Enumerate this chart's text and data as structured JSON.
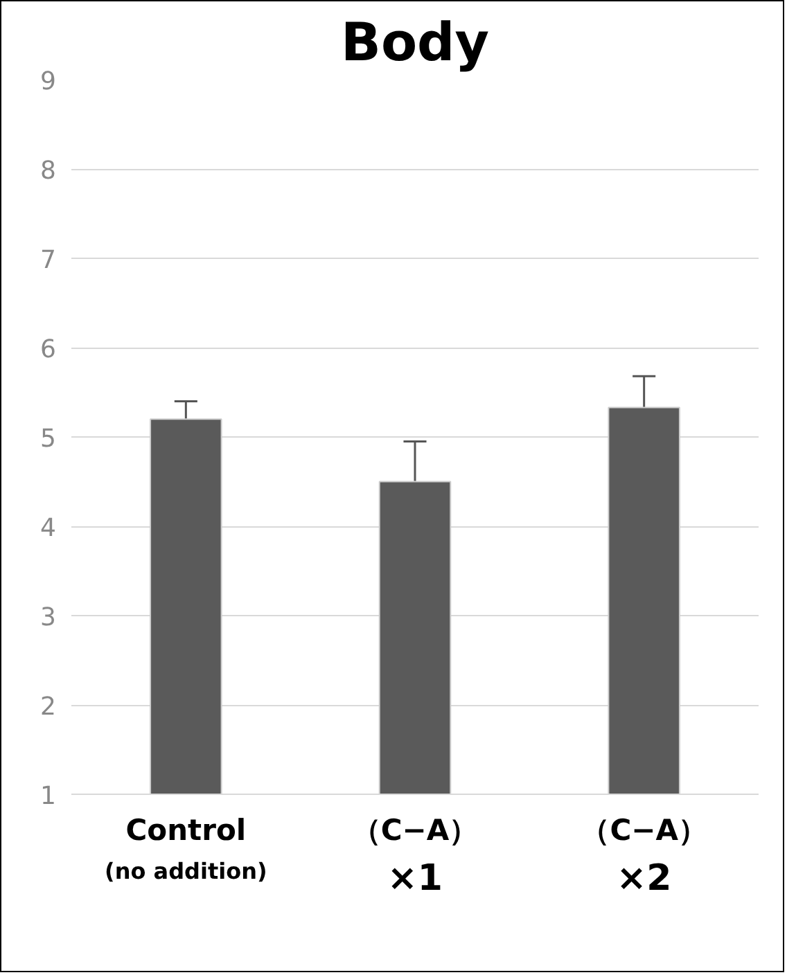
{
  "chart_data": {
    "type": "bar",
    "title": "Body",
    "categories": [
      "Control\n(no addition)",
      "（C−A）\n×1",
      "（C−A）\n×2"
    ],
    "values": [
      5.2,
      4.5,
      5.33
    ],
    "errors": [
      0.2,
      0.45,
      0.35
    ],
    "color": "#5a5a5a",
    "ylim": [
      1,
      9
    ],
    "yticks": [
      1,
      2,
      3,
      4,
      5,
      6,
      7,
      8,
      9
    ],
    "grid": "y"
  }
}
